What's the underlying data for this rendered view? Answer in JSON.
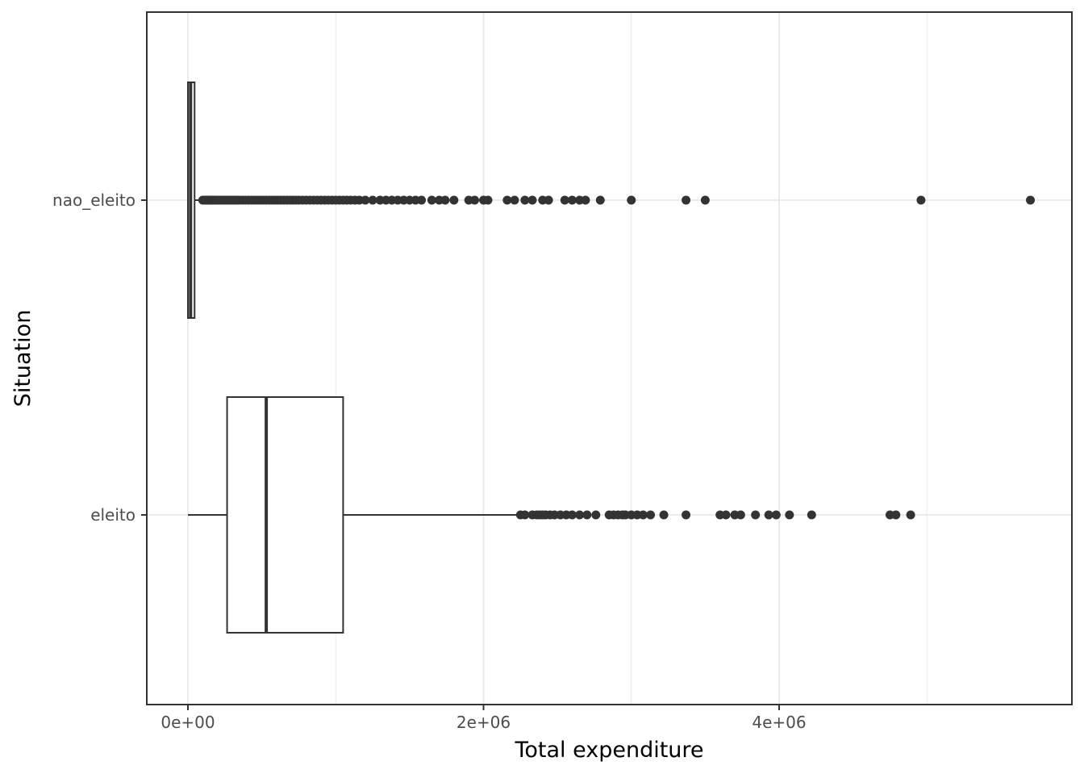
{
  "chart_data": {
    "type": "boxplot",
    "orientation": "horizontal",
    "title": "",
    "xlabel": "Total expenditure",
    "ylabel": "Situation",
    "x_ticks": [
      {
        "value": 0,
        "label": "0e+00"
      },
      {
        "value": 2000000,
        "label": "2e+06"
      },
      {
        "value": 4000000,
        "label": "4e+06"
      }
    ],
    "xlim": [
      -280000,
      6000000
    ],
    "categories": [
      "eleito",
      "nao_eleito"
    ],
    "grid": true,
    "boxes": [
      {
        "category": "nao_eleito",
        "whisker_low": 0,
        "q1": 0,
        "median": 18000,
        "q3": 45000,
        "whisker_high": 95000,
        "outliers": [
          100000,
          110000,
          120000,
          130000,
          140000,
          150000,
          160000,
          170000,
          180000,
          190000,
          200000,
          215000,
          230000,
          245000,
          260000,
          275000,
          290000,
          305000,
          320000,
          335000,
          350000,
          370000,
          390000,
          410000,
          430000,
          450000,
          470000,
          490000,
          510000,
          530000,
          550000,
          570000,
          590000,
          610000,
          630000,
          650000,
          670000,
          690000,
          710000,
          730000,
          750000,
          775000,
          800000,
          825000,
          850000,
          875000,
          900000,
          925000,
          950000,
          975000,
          1000000,
          1025000,
          1050000,
          1075000,
          1100000,
          1130000,
          1160000,
          1200000,
          1250000,
          1300000,
          1340000,
          1380000,
          1420000,
          1460000,
          1500000,
          1540000,
          1580000,
          1650000,
          1700000,
          1740000,
          1800000,
          1900000,
          1940000,
          2000000,
          2030000,
          2160000,
          2210000,
          2280000,
          2330000,
          2400000,
          2440000,
          2550000,
          2600000,
          2650000,
          2690000,
          2790000,
          3000000,
          3370000,
          3500000,
          4960000,
          5700000
        ]
      },
      {
        "category": "eleito",
        "whisker_low": 0,
        "q1": 265000,
        "median": 530000,
        "q3": 1050000,
        "whisker_high": 2230000,
        "outliers": [
          2250000,
          2280000,
          2330000,
          2360000,
          2380000,
          2400000,
          2420000,
          2450000,
          2480000,
          2520000,
          2560000,
          2600000,
          2650000,
          2700000,
          2760000,
          2850000,
          2880000,
          2910000,
          2940000,
          2960000,
          3000000,
          3040000,
          3080000,
          3130000,
          3220000,
          3370000,
          3600000,
          3640000,
          3700000,
          3740000,
          3840000,
          3930000,
          3980000,
          4070000,
          4220000,
          4750000,
          4790000,
          4890000
        ]
      }
    ],
    "style": {
      "box_fill": "#ffffff",
      "line_color": "#333333",
      "outlier_color": "#333333",
      "grid_color": "#ebebeb",
      "panel_border": "#333333"
    }
  }
}
